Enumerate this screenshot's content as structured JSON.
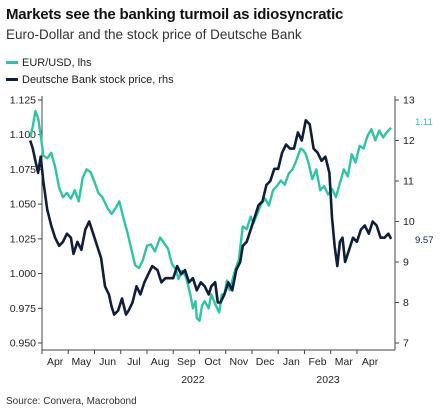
{
  "title": "Markets see the banking turmoil as idiosyncratic",
  "subtitle": "Euro-Dollar and the stock price of Deutsche Bank",
  "source": "Source: Convera, Macrobond",
  "colors": {
    "eurusd": "#2ec4a6",
    "db": "#0d1f3c",
    "axis": "#444444",
    "grid": "#dddddd"
  },
  "chart_data": {
    "type": "line",
    "x_tick_labels": [
      "Apr",
      "May",
      "Jun",
      "Jul",
      "Aug",
      "Sep",
      "Oct",
      "Nov",
      "Dec",
      "Jan",
      "Feb",
      "Mar",
      "Apr"
    ],
    "year_labels": [
      "2022",
      "2023"
    ],
    "y_left": {
      "ticks": [
        "0.950",
        "0.975",
        "1.000",
        "1.025",
        "1.050",
        "1.075",
        "1.100",
        "1.125"
      ],
      "min": 0.95,
      "max": 1.125
    },
    "y_right": {
      "ticks": [
        "7",
        "8",
        "9",
        "10",
        "11",
        "12",
        "13"
      ],
      "min": 7,
      "max": 13
    },
    "last_value_labels": {
      "eurusd": "1.11",
      "db": "9.57"
    },
    "x_range": [
      0,
      13.45
    ],
    "series": [
      {
        "name": "EUR/USD, lhs",
        "axis": "left",
        "key": "eurusd",
        "points": [
          [
            -0.45,
            1.098
          ],
          [
            -0.35,
            1.106
          ],
          [
            -0.25,
            1.117
          ],
          [
            -0.15,
            1.112
          ],
          [
            -0.05,
            1.1
          ],
          [
            0.05,
            1.085
          ],
          [
            0.2,
            1.083
          ],
          [
            0.35,
            1.087
          ],
          [
            0.5,
            1.077
          ],
          [
            0.65,
            1.062
          ],
          [
            0.8,
            1.055
          ],
          [
            0.95,
            1.058
          ],
          [
            1.1,
            1.054
          ],
          [
            1.25,
            1.06
          ],
          [
            1.4,
            1.052
          ],
          [
            1.55,
            1.069
          ],
          [
            1.7,
            1.075
          ],
          [
            1.85,
            1.073
          ],
          [
            2.0,
            1.066
          ],
          [
            2.15,
            1.058
          ],
          [
            2.3,
            1.055
          ],
          [
            2.5,
            1.047
          ],
          [
            2.65,
            1.043
          ],
          [
            2.8,
            1.047
          ],
          [
            2.95,
            1.052
          ],
          [
            3.1,
            1.04
          ],
          [
            3.25,
            1.03
          ],
          [
            3.4,
            1.018
          ],
          [
            3.55,
            1.006
          ],
          [
            3.7,
            1.004
          ],
          [
            3.85,
            1.01
          ],
          [
            4.0,
            1.02
          ],
          [
            4.15,
            1.021
          ],
          [
            4.3,
            1.016
          ],
          [
            4.5,
            1.026
          ],
          [
            4.65,
            1.022
          ],
          [
            4.8,
            1.018
          ],
          [
            4.95,
            1.007
          ],
          [
            5.1,
            1.003
          ],
          [
            5.2,
            0.996
          ],
          [
            5.35,
            1.002
          ],
          [
            5.5,
            0.997
          ],
          [
            5.65,
            0.985
          ],
          [
            5.75,
            0.975
          ],
          [
            5.85,
            0.98
          ],
          [
            5.9,
            0.968
          ],
          [
            6.0,
            0.966
          ],
          [
            6.1,
            0.977
          ],
          [
            6.2,
            0.98
          ],
          [
            6.35,
            0.975
          ],
          [
            6.45,
            0.985
          ],
          [
            6.6,
            0.978
          ],
          [
            6.75,
            0.972
          ],
          [
            6.85,
            0.985
          ],
          [
            6.95,
            0.985
          ],
          [
            7.05,
            0.995
          ],
          [
            7.15,
            0.988
          ],
          [
            7.25,
            0.995
          ],
          [
            7.35,
            1.002
          ],
          [
            7.5,
            1.01
          ],
          [
            7.65,
            1.034
          ],
          [
            7.8,
            1.032
          ],
          [
            7.95,
            1.041
          ],
          [
            8.05,
            1.036
          ],
          [
            8.2,
            1.043
          ],
          [
            8.35,
            1.05
          ],
          [
            8.5,
            1.054
          ],
          [
            8.65,
            1.049
          ],
          [
            8.8,
            1.06
          ],
          [
            8.95,
            1.063
          ],
          [
            9.1,
            1.067
          ],
          [
            9.25,
            1.064
          ],
          [
            9.4,
            1.072
          ],
          [
            9.55,
            1.075
          ],
          [
            9.7,
            1.082
          ],
          [
            9.85,
            1.09
          ],
          [
            9.95,
            1.089
          ],
          [
            10.05,
            1.086
          ],
          [
            10.15,
            1.08
          ],
          [
            10.3,
            1.068
          ],
          [
            10.45,
            1.075
          ],
          [
            10.6,
            1.06
          ],
          [
            10.75,
            1.063
          ],
          [
            10.9,
            1.057
          ],
          [
            11.05,
            1.061
          ],
          [
            11.2,
            1.055
          ],
          [
            11.35,
            1.065
          ],
          [
            11.5,
            1.075
          ],
          [
            11.65,
            1.07
          ],
          [
            11.8,
            1.086
          ],
          [
            11.95,
            1.08
          ],
          [
            12.1,
            1.092
          ],
          [
            12.25,
            1.09
          ],
          [
            12.4,
            1.099
          ],
          [
            12.55,
            1.104
          ],
          [
            12.7,
            1.096
          ],
          [
            12.85,
            1.103
          ],
          [
            13.0,
            1.098
          ],
          [
            13.15,
            1.102
          ],
          [
            13.3,
            1.105
          ]
        ]
      },
      {
        "name": "Deutsche Bank stock price, rhs",
        "axis": "right",
        "key": "db",
        "points": [
          [
            -0.45,
            12.0
          ],
          [
            -0.35,
            11.8
          ],
          [
            -0.25,
            11.5
          ],
          [
            -0.15,
            11.2
          ],
          [
            -0.05,
            11.6
          ],
          [
            0.05,
            11.0
          ],
          [
            0.2,
            10.3
          ],
          [
            0.35,
            9.9
          ],
          [
            0.5,
            9.6
          ],
          [
            0.65,
            9.4
          ],
          [
            0.8,
            9.5
          ],
          [
            0.95,
            9.7
          ],
          [
            1.1,
            9.6
          ],
          [
            1.2,
            9.2
          ],
          [
            1.35,
            9.5
          ],
          [
            1.5,
            9.3
          ],
          [
            1.65,
            9.8
          ],
          [
            1.8,
            10.0
          ],
          [
            1.95,
            9.7
          ],
          [
            2.1,
            9.4
          ],
          [
            2.25,
            9.1
          ],
          [
            2.4,
            8.4
          ],
          [
            2.55,
            8.2
          ],
          [
            2.65,
            7.9
          ],
          [
            2.75,
            7.7
          ],
          [
            2.9,
            7.8
          ],
          [
            3.05,
            8.1
          ],
          [
            3.2,
            7.7
          ],
          [
            3.3,
            7.8
          ],
          [
            3.45,
            8.0
          ],
          [
            3.6,
            8.4
          ],
          [
            3.75,
            8.2
          ],
          [
            3.9,
            8.5
          ],
          [
            4.05,
            8.7
          ],
          [
            4.2,
            8.9
          ],
          [
            4.4,
            8.8
          ],
          [
            4.55,
            8.5
          ],
          [
            4.7,
            8.6
          ],
          [
            4.85,
            8.6
          ],
          [
            5.0,
            8.6
          ],
          [
            5.15,
            8.9
          ],
          [
            5.3,
            8.7
          ],
          [
            5.45,
            8.8
          ],
          [
            5.6,
            8.5
          ],
          [
            5.75,
            8.6
          ],
          [
            5.9,
            8.3
          ],
          [
            6.05,
            8.5
          ],
          [
            6.2,
            8.4
          ],
          [
            6.35,
            8.2
          ],
          [
            6.45,
            8.4
          ],
          [
            6.6,
            8.5
          ],
          [
            6.7,
            8.0
          ],
          [
            6.8,
            8.0
          ],
          [
            6.95,
            8.2
          ],
          [
            7.1,
            8.5
          ],
          [
            7.25,
            8.3
          ],
          [
            7.4,
            8.8
          ],
          [
            7.55,
            9.0
          ],
          [
            7.65,
            9.4
          ],
          [
            7.8,
            9.5
          ],
          [
            7.95,
            9.8
          ],
          [
            8.1,
            10.1
          ],
          [
            8.25,
            10.4
          ],
          [
            8.4,
            10.5
          ],
          [
            8.55,
            10.9
          ],
          [
            8.7,
            11.0
          ],
          [
            8.85,
            11.3
          ],
          [
            9.0,
            11.3
          ],
          [
            9.15,
            11.7
          ],
          [
            9.3,
            11.9
          ],
          [
            9.45,
            11.8
          ],
          [
            9.6,
            11.8
          ],
          [
            9.75,
            12.2
          ],
          [
            9.9,
            12.0
          ],
          [
            10.05,
            12.5
          ],
          [
            10.2,
            12.4
          ],
          [
            10.35,
            11.8
          ],
          [
            10.5,
            11.7
          ],
          [
            10.65,
            11.5
          ],
          [
            10.8,
            11.6
          ],
          [
            10.95,
            11.2
          ],
          [
            11.05,
            10.1
          ],
          [
            11.15,
            9.4
          ],
          [
            11.25,
            8.9
          ],
          [
            11.35,
            9.5
          ],
          [
            11.45,
            9.6
          ],
          [
            11.55,
            9.0
          ],
          [
            11.7,
            9.3
          ],
          [
            11.85,
            9.6
          ],
          [
            12.0,
            9.5
          ],
          [
            12.15,
            9.8
          ],
          [
            12.3,
            9.9
          ],
          [
            12.45,
            9.7
          ],
          [
            12.6,
            10.0
          ],
          [
            12.75,
            9.9
          ],
          [
            12.9,
            9.6
          ],
          [
            13.05,
            9.6
          ],
          [
            13.2,
            9.7
          ],
          [
            13.3,
            9.57
          ]
        ]
      }
    ]
  }
}
